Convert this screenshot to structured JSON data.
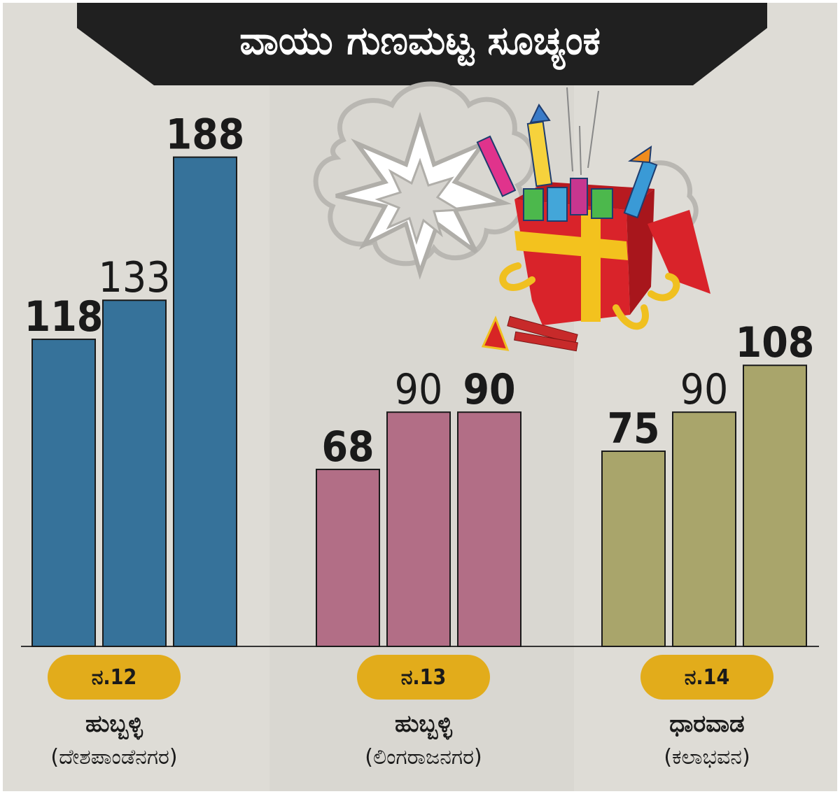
{
  "title": "ವಾಯು ಗುಣಮಟ್ಟ ಸೂಚ್ಯಂಕ",
  "colors": {
    "blue": "#36729a",
    "pink": "#b26e86",
    "olive": "#a9a56b",
    "pill": "#e2ac1b",
    "banner": "#202020",
    "background": "#dedcd6"
  },
  "chart_data": {
    "type": "bar",
    "title": "ವಾಯು ಗುಣಮಟ್ಟ ಸೂಚ್ಯಂಕ",
    "ylim": [
      0,
      200
    ],
    "groups": [
      {
        "date": "ನ.12",
        "place": "ಹುಬ್ಬಳ್ಳಿ",
        "area": "(ದೇಶಪಾಂಡೆನಗರ)",
        "color": "#36729a",
        "values": [
          118,
          133,
          188
        ],
        "labels": [
          "118",
          "133",
          "188"
        ]
      },
      {
        "date": "ನ.13",
        "place": "ಹುಬ್ಬಳ್ಳಿ",
        "area": "(ಲಿಂಗರಾಜನಗರ)",
        "color": "#b26e86",
        "values": [
          68,
          90,
          90
        ],
        "labels": [
          "68",
          "90",
          "90"
        ]
      },
      {
        "date": "ನ.14",
        "place": "ಧಾರವಾಡ",
        "area": "(ಕಲಾಭವನ)",
        "color": "#a9a56b",
        "values": [
          75,
          90,
          108
        ],
        "labels": [
          "75",
          "90",
          "108"
        ]
      }
    ],
    "decoration_icon": "firecracker-gift-box-icon"
  }
}
